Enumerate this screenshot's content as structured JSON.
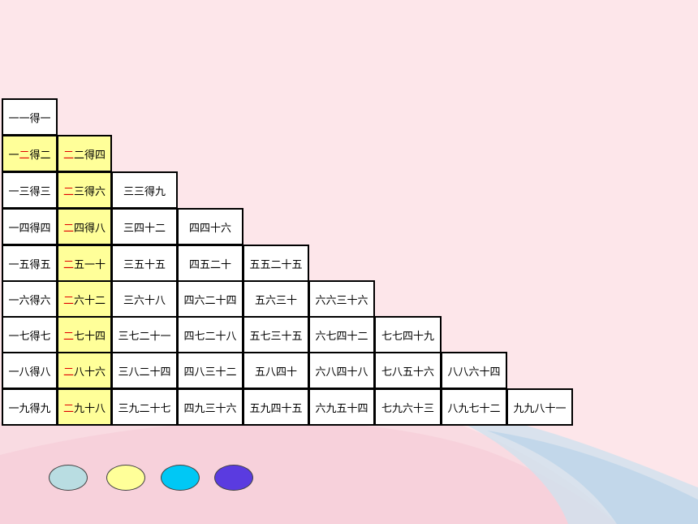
{
  "multiplication_table": {
    "rows": [
      {
        "cells": [
          {
            "pre": "一",
            "red": "",
            "post": "一得一",
            "hl": false
          }
        ]
      },
      {
        "cells": [
          {
            "pre": "一",
            "red": "二",
            "post": "得二",
            "hl": true
          },
          {
            "pre": "",
            "red": "二",
            "post": "二得四",
            "hl": true
          }
        ]
      },
      {
        "cells": [
          {
            "pre": "一三得三",
            "red": "",
            "post": "",
            "hl": false
          },
          {
            "pre": "",
            "red": "二",
            "post": "三得六",
            "hl": true
          },
          {
            "pre": "三三得九",
            "red": "",
            "post": "",
            "hl": false
          }
        ]
      },
      {
        "cells": [
          {
            "pre": "一四得四",
            "red": "",
            "post": "",
            "hl": false
          },
          {
            "pre": "",
            "red": "二",
            "post": "四得八",
            "hl": true
          },
          {
            "pre": "三四十二",
            "red": "",
            "post": "",
            "hl": false
          },
          {
            "pre": "四四十六",
            "red": "",
            "post": "",
            "hl": false
          }
        ]
      },
      {
        "cells": [
          {
            "pre": "一五得五",
            "red": "",
            "post": "",
            "hl": false
          },
          {
            "pre": "",
            "red": "二",
            "post": "五一十",
            "hl": true
          },
          {
            "pre": "三五十五",
            "red": "",
            "post": "",
            "hl": false
          },
          {
            "pre": "四五二十",
            "red": "",
            "post": "",
            "hl": false
          },
          {
            "pre": "五五二十五",
            "red": "",
            "post": "",
            "hl": false
          }
        ]
      },
      {
        "cells": [
          {
            "pre": "一六得六",
            "red": "",
            "post": "",
            "hl": false
          },
          {
            "pre": "",
            "red": "二",
            "post": "六十二",
            "hl": true
          },
          {
            "pre": "三六十八",
            "red": "",
            "post": "",
            "hl": false
          },
          {
            "pre": "四六二十四",
            "red": "",
            "post": "",
            "hl": false
          },
          {
            "pre": "五六三十",
            "red": "",
            "post": "",
            "hl": false
          },
          {
            "pre": "六六三十六",
            "red": "",
            "post": "",
            "hl": false
          }
        ]
      },
      {
        "cells": [
          {
            "pre": "一七得七",
            "red": "",
            "post": "",
            "hl": false
          },
          {
            "pre": "",
            "red": "二",
            "post": "七十四",
            "hl": true
          },
          {
            "pre": "三七二十一",
            "red": "",
            "post": "",
            "hl": false
          },
          {
            "pre": "四七二十八",
            "red": "",
            "post": "",
            "hl": false
          },
          {
            "pre": "五七三十五",
            "red": "",
            "post": "",
            "hl": false
          },
          {
            "pre": "六七四十二",
            "red": "",
            "post": "",
            "hl": false
          },
          {
            "pre": "七七四十九",
            "red": "",
            "post": "",
            "hl": false
          }
        ]
      },
      {
        "cells": [
          {
            "pre": "一八得八",
            "red": "",
            "post": "",
            "hl": false
          },
          {
            "pre": "",
            "red": "二",
            "post": "八十六",
            "hl": true
          },
          {
            "pre": "三八二十四",
            "red": "",
            "post": "",
            "hl": false
          },
          {
            "pre": "四八三十二",
            "red": "",
            "post": "",
            "hl": false
          },
          {
            "pre": "五八四十",
            "red": "",
            "post": "",
            "hl": false
          },
          {
            "pre": "六八四十八",
            "red": "",
            "post": "",
            "hl": false
          },
          {
            "pre": "七八五十六",
            "red": "",
            "post": "",
            "hl": false
          },
          {
            "pre": "八八六十四",
            "red": "",
            "post": "",
            "hl": false
          }
        ]
      },
      {
        "cells": [
          {
            "pre": "一九得九",
            "red": "",
            "post": "",
            "hl": false
          },
          {
            "pre": "",
            "red": "二",
            "post": "九十八",
            "hl": true
          },
          {
            "pre": "三九二十七",
            "red": "",
            "post": "",
            "hl": false
          },
          {
            "pre": "四九三十六",
            "red": "",
            "post": "",
            "hl": false
          },
          {
            "pre": "五九四十五",
            "red": "",
            "post": "",
            "hl": false
          },
          {
            "pre": "六九五十四",
            "red": "",
            "post": "",
            "hl": false
          },
          {
            "pre": "七九六十三",
            "red": "",
            "post": "",
            "hl": false
          },
          {
            "pre": "八九七十二",
            "red": "",
            "post": "",
            "hl": false
          },
          {
            "pre": "九九八十一",
            "red": "",
            "post": "",
            "hl": false
          }
        ]
      }
    ]
  },
  "colors": {
    "background": "#fde6ea",
    "highlight": "#ffff99",
    "red_text": "#e00000"
  },
  "color_buttons": [
    {
      "name": "light-blue",
      "color": "#b9dde2"
    },
    {
      "name": "light-yellow",
      "color": "#ffff99"
    },
    {
      "name": "cyan",
      "color": "#00c8f5"
    },
    {
      "name": "purple",
      "color": "#5a3be0"
    }
  ]
}
